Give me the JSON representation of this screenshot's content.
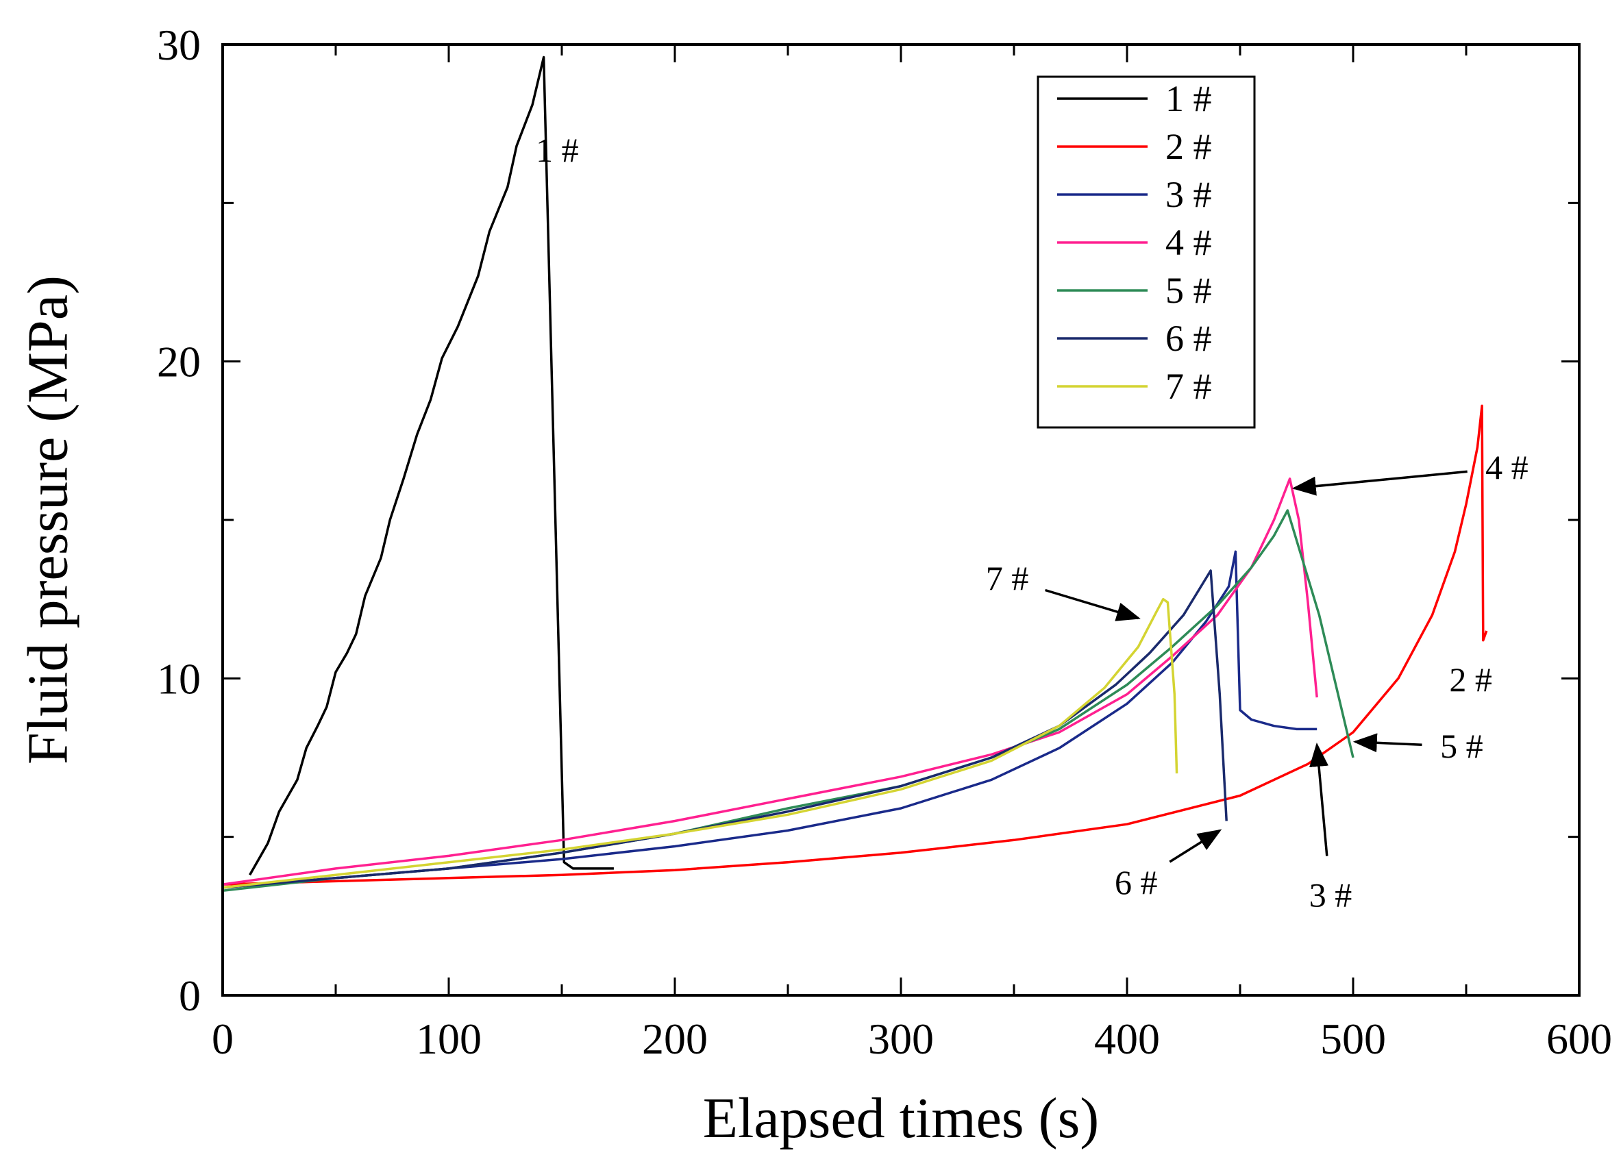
{
  "chart_data": {
    "type": "line",
    "title": "",
    "xlabel": "Elapsed times (s)",
    "ylabel": "Fluid pressure (MPa)",
    "xlim": [
      0,
      600
    ],
    "ylim": [
      0,
      30
    ],
    "xticks": [
      0,
      100,
      200,
      300,
      400,
      500,
      600
    ],
    "yticks": [
      0,
      10,
      20,
      30
    ],
    "x_minor_ticks": [
      50,
      150,
      250,
      350,
      450,
      550
    ],
    "y_minor_ticks": [
      5,
      15,
      25
    ],
    "grid": false,
    "legend_position": "top-right",
    "series": [
      {
        "name": "1 #",
        "color": "#000000",
        "points": [
          [
            12,
            3.8
          ],
          [
            20,
            4.8
          ],
          [
            25,
            5.8
          ],
          [
            33,
            6.8
          ],
          [
            37,
            7.8
          ],
          [
            42,
            8.5
          ],
          [
            46,
            9.1
          ],
          [
            50,
            10.2
          ],
          [
            55,
            10.8
          ],
          [
            59,
            11.4
          ],
          [
            63,
            12.6
          ],
          [
            70,
            13.8
          ],
          [
            74,
            15.0
          ],
          [
            80,
            16.3
          ],
          [
            86,
            17.7
          ],
          [
            92,
            18.8
          ],
          [
            97,
            20.1
          ],
          [
            104,
            21.1
          ],
          [
            113,
            22.7
          ],
          [
            118,
            24.1
          ],
          [
            126,
            25.5
          ],
          [
            130,
            26.8
          ],
          [
            137,
            28.1
          ],
          [
            142,
            29.6
          ],
          [
            151,
            4.2
          ],
          [
            155,
            4.0
          ],
          [
            160,
            4.0
          ],
          [
            165,
            4.0
          ],
          [
            173,
            4.0
          ]
        ]
      },
      {
        "name": "2 #",
        "color": "#ff0000",
        "points": [
          [
            0,
            3.5
          ],
          [
            50,
            3.6
          ],
          [
            100,
            3.7
          ],
          [
            150,
            3.8
          ],
          [
            200,
            3.95
          ],
          [
            250,
            4.2
          ],
          [
            300,
            4.5
          ],
          [
            350,
            4.9
          ],
          [
            400,
            5.4
          ],
          [
            450,
            6.3
          ],
          [
            480,
            7.3
          ],
          [
            500,
            8.3
          ],
          [
            520,
            10.0
          ],
          [
            535,
            12.0
          ],
          [
            545,
            14.0
          ],
          [
            550,
            15.5
          ],
          [
            555,
            17.3
          ],
          [
            557,
            18.6
          ],
          [
            557.5,
            11.2
          ],
          [
            559,
            11.5
          ]
        ]
      },
      {
        "name": "3 #",
        "color": "#1a2a8a",
        "points": [
          [
            0,
            3.4
          ],
          [
            50,
            3.7
          ],
          [
            100,
            4.0
          ],
          [
            150,
            4.3
          ],
          [
            200,
            4.7
          ],
          [
            250,
            5.2
          ],
          [
            300,
            5.9
          ],
          [
            340,
            6.8
          ],
          [
            370,
            7.8
          ],
          [
            400,
            9.2
          ],
          [
            420,
            10.5
          ],
          [
            435,
            11.8
          ],
          [
            445,
            12.9
          ],
          [
            448,
            14.0
          ],
          [
            450,
            9.0
          ],
          [
            455,
            8.7
          ],
          [
            465,
            8.5
          ],
          [
            475,
            8.4
          ],
          [
            484,
            8.4
          ]
        ]
      },
      {
        "name": "4 #",
        "color": "#ff2090",
        "points": [
          [
            0,
            3.5
          ],
          [
            50,
            4.0
          ],
          [
            100,
            4.4
          ],
          [
            150,
            4.9
          ],
          [
            200,
            5.5
          ],
          [
            250,
            6.2
          ],
          [
            300,
            6.9
          ],
          [
            340,
            7.6
          ],
          [
            370,
            8.3
          ],
          [
            400,
            9.5
          ],
          [
            420,
            10.7
          ],
          [
            440,
            12.0
          ],
          [
            455,
            13.5
          ],
          [
            465,
            15.0
          ],
          [
            472,
            16.3
          ],
          [
            476,
            15.0
          ],
          [
            480,
            12.4
          ],
          [
            484,
            9.4
          ]
        ]
      },
      {
        "name": "5 #",
        "color": "#2e8b57",
        "points": [
          [
            0,
            3.3
          ],
          [
            50,
            3.7
          ],
          [
            100,
            4.0
          ],
          [
            150,
            4.5
          ],
          [
            200,
            5.1
          ],
          [
            250,
            5.9
          ],
          [
            300,
            6.6
          ],
          [
            340,
            7.5
          ],
          [
            370,
            8.4
          ],
          [
            400,
            9.8
          ],
          [
            420,
            11.0
          ],
          [
            440,
            12.3
          ],
          [
            455,
            13.5
          ],
          [
            465,
            14.5
          ],
          [
            471,
            15.3
          ],
          [
            485,
            12.0
          ],
          [
            500,
            7.5
          ]
        ]
      },
      {
        "name": "6 #",
        "color": "#1a2a6c",
        "points": [
          [
            0,
            3.4
          ],
          [
            50,
            3.7
          ],
          [
            100,
            4.0
          ],
          [
            150,
            4.5
          ],
          [
            200,
            5.1
          ],
          [
            250,
            5.8
          ],
          [
            300,
            6.6
          ],
          [
            340,
            7.5
          ],
          [
            370,
            8.5
          ],
          [
            395,
            9.8
          ],
          [
            410,
            10.8
          ],
          [
            425,
            12.0
          ],
          [
            437,
            13.4
          ],
          [
            441,
            9.5
          ],
          [
            444,
            5.5
          ]
        ]
      },
      {
        "name": "7 #",
        "color": "#d4d432",
        "points": [
          [
            0,
            3.4
          ],
          [
            50,
            3.8
          ],
          [
            100,
            4.2
          ],
          [
            150,
            4.6
          ],
          [
            200,
            5.1
          ],
          [
            250,
            5.7
          ],
          [
            300,
            6.5
          ],
          [
            340,
            7.4
          ],
          [
            370,
            8.5
          ],
          [
            390,
            9.7
          ],
          [
            405,
            11.0
          ],
          [
            413,
            12.1
          ],
          [
            416,
            12.5
          ],
          [
            418,
            12.4
          ],
          [
            421,
            9.5
          ],
          [
            422,
            7.0
          ]
        ]
      }
    ],
    "annotations": [
      {
        "text": "1 #",
        "arrow": false,
        "at": [
          148,
          26.3
        ]
      },
      {
        "text": "2 #",
        "arrow": false,
        "at": [
          552,
          9.6
        ]
      },
      {
        "text": "3 #",
        "arrow": true,
        "at": [
          490,
          2.8
        ],
        "target": [
          484,
          7.9
        ]
      },
      {
        "text": "4 #",
        "arrow": true,
        "at": [
          568,
          16.3
        ],
        "target": [
          474,
          16.0
        ]
      },
      {
        "text": "5 #",
        "arrow": true,
        "at": [
          548,
          7.5
        ],
        "target": [
          501,
          8.0
        ]
      },
      {
        "text": "6 #",
        "arrow": true,
        "at": [
          404,
          3.2
        ],
        "target": [
          441,
          5.2
        ]
      },
      {
        "text": "7 #",
        "arrow": true,
        "at": [
          347,
          12.8
        ],
        "target": [
          405,
          11.9
        ]
      }
    ]
  }
}
